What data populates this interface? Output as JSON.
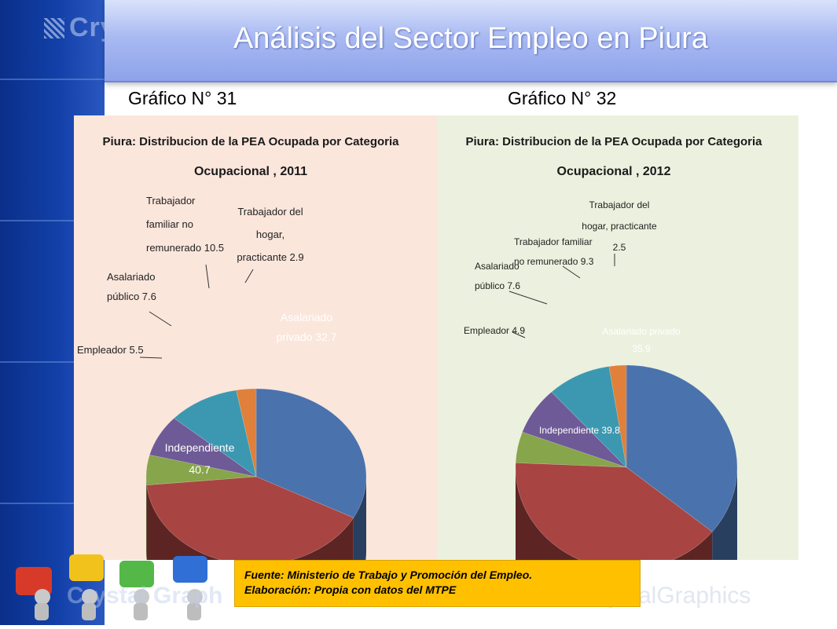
{
  "brand": {
    "name": "CrystalGraphics",
    "top_fragment": "Cry",
    "bottom_left_fragment": "Crystal Graph"
  },
  "header": {
    "title": "Análisis del Sector Empleo en Piura"
  },
  "labels": {
    "left": "Gráfico N° 31",
    "right": "Gráfico N° 32"
  },
  "source": {
    "line1": "Fuente: Ministerio de Trabajo y Promoción del Empleo.",
    "line2": "Elaboración: Propia con datos del MTPE"
  },
  "chart_data": [
    {
      "type": "pie",
      "title": "Piura: Distribucion de la PEA Ocupada por Categoria Ocupacional , 2011",
      "title_lines": [
        "Piura: Distribucion de la PEA Ocupada por Categoria",
        "Ocupacional , 2011"
      ],
      "categories": [
        "Asalariado privado",
        "Independiente",
        "Empleador",
        "Asalariado público",
        "Trabajador familiar no remunerado",
        "Trabajador del hogar, practicante"
      ],
      "values": [
        32.7,
        40.7,
        5.5,
        7.6,
        10.5,
        2.9
      ],
      "data_labels": [
        [
          "Asalariado",
          "privado 32.7"
        ],
        [
          "Independiente",
          "40.7"
        ],
        [
          "Empleador 5.5"
        ],
        [
          "Asalariado",
          "público 7.6"
        ],
        [
          "Trabajador",
          "familiar no",
          "remunerado 10.5"
        ],
        [
          "Trabajador del",
          "hogar,",
          "practicante 2.9"
        ]
      ],
      "colors": [
        "#4a72ad",
        "#a84442",
        "#87a54a",
        "#6e5a96",
        "#3c98b0",
        "#e0803a"
      ],
      "background": "#fbe6dc"
    },
    {
      "type": "pie",
      "title": "Piura: Distribucion de la PEA Ocupada por Categoria Ocupacional , 2012",
      "title_lines": [
        "Piura: Distribucion de la PEA Ocupada por Categoria",
        "Ocupacional , 2012"
      ],
      "categories": [
        "Asalariado privado",
        "Independiente",
        "Empleador",
        "Asalariado público",
        "Trabajador familiar no remunerado",
        "Trabajador del hogar, practicante"
      ],
      "values": [
        35.9,
        39.8,
        4.9,
        7.6,
        9.3,
        2.5
      ],
      "data_labels": [
        [
          "Asalariado privado",
          "35.9"
        ],
        [
          "Independiente 39.8"
        ],
        [
          "Empleador 4.9"
        ],
        [
          "Asalariado",
          "público 7.6"
        ],
        [
          "Trabajador familiar",
          "no remunerado 9.3"
        ],
        [
          "Trabajador del",
          "hogar, practicante",
          "2.5"
        ]
      ],
      "colors": [
        "#4a72ad",
        "#a84442",
        "#87a54a",
        "#6e5a96",
        "#3c98b0",
        "#e0803a"
      ],
      "background": "#ebf1de"
    }
  ]
}
